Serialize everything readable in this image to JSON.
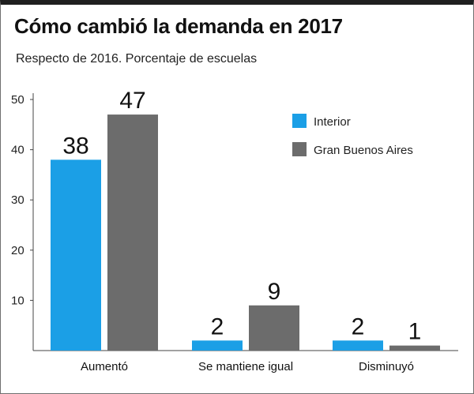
{
  "header": {
    "title": "Cómo cambió la demanda en 2017",
    "subtitle": "Respecto de 2016. Porcentaje de escuelas"
  },
  "colors": {
    "interior": "#1b9fe6",
    "gba": "#6c6c6c",
    "axis": "#444444"
  },
  "chart_data": {
    "type": "bar",
    "title": "Cómo cambió la demanda en 2017",
    "subtitle": "Respecto de 2016. Porcentaje de escuelas",
    "categories": [
      "Aumentó",
      "Se mantiene igual",
      "Disminuyó"
    ],
    "series": [
      {
        "name": "Interior",
        "values": [
          38,
          2,
          2
        ]
      },
      {
        "name": "Gran Buenos Aires",
        "values": [
          47,
          9,
          1
        ]
      }
    ],
    "yticks": [
      "50",
      "40",
      "30",
      "20",
      "10"
    ],
    "ylim": [
      0,
      50
    ],
    "grid": false,
    "legend": "top-right"
  }
}
